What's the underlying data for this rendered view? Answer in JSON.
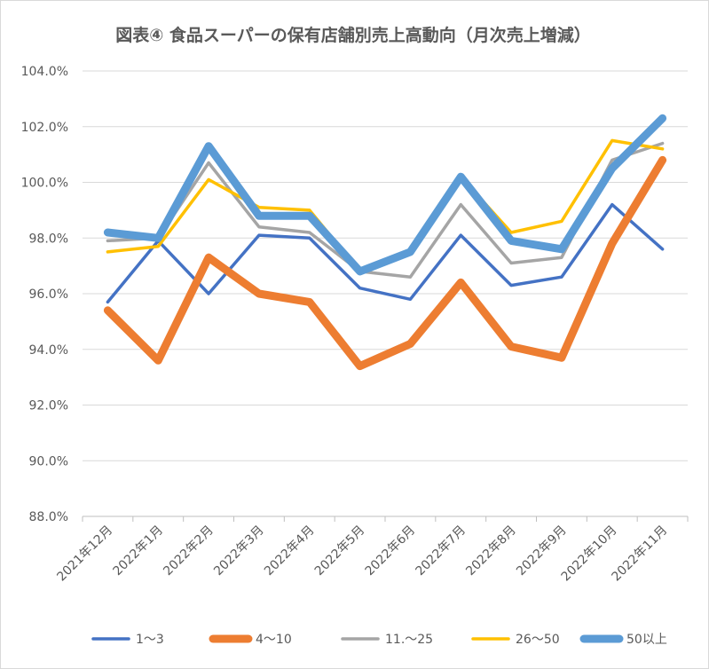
{
  "chart_data": {
    "type": "line",
    "title": "図表④ 食品スーパーの保有店舗別売上高動向（月次売上増減）",
    "xlabel": "",
    "ylabel": "",
    "categories": [
      "2021年12月",
      "2022年1月",
      "2022年2月",
      "2022年3月",
      "2022年4月",
      "2022年5月",
      "2022年6月",
      "2022年7月",
      "2022年8月",
      "2022年9月",
      "2022年10月",
      "2022年11月"
    ],
    "ylim": [
      88.0,
      104.0
    ],
    "yticks": [
      88.0,
      90.0,
      92.0,
      94.0,
      96.0,
      98.0,
      100.0,
      102.0,
      104.0
    ],
    "ytick_labels": [
      "88.0%",
      "90.0%",
      "92.0%",
      "94.0%",
      "96.0%",
      "98.0%",
      "100.0%",
      "102.0%",
      "104.0%"
    ],
    "grid": "horizontal",
    "legend_position": "bottom",
    "series": [
      {
        "name": "1〜3",
        "color": "#4472c4",
        "values": [
          95.7,
          97.9,
          96.0,
          98.1,
          98.0,
          96.2,
          95.8,
          98.1,
          96.3,
          96.6,
          99.2,
          97.6
        ]
      },
      {
        "name": "4〜10",
        "color": "#ed7d31",
        "values": [
          95.4,
          93.6,
          97.3,
          96.0,
          95.7,
          93.4,
          94.2,
          96.4,
          94.1,
          93.7,
          97.8,
          100.8
        ]
      },
      {
        "name": "11.〜25",
        "color": "#a5a5a5",
        "values": [
          97.9,
          98.0,
          100.7,
          98.4,
          98.2,
          96.8,
          96.6,
          99.2,
          97.1,
          97.3,
          100.8,
          101.4
        ]
      },
      {
        "name": "26〜50",
        "color": "#ffc000",
        "values": [
          97.5,
          97.7,
          100.1,
          99.1,
          99.0,
          96.8,
          97.5,
          100.2,
          98.2,
          98.6,
          101.5,
          101.2
        ]
      },
      {
        "name": "50以上",
        "color": "#5b9bd5",
        "values": [
          98.2,
          98.0,
          101.3,
          98.8,
          98.8,
          96.8,
          97.5,
          100.2,
          97.9,
          97.6,
          100.5,
          102.3
        ]
      }
    ]
  }
}
